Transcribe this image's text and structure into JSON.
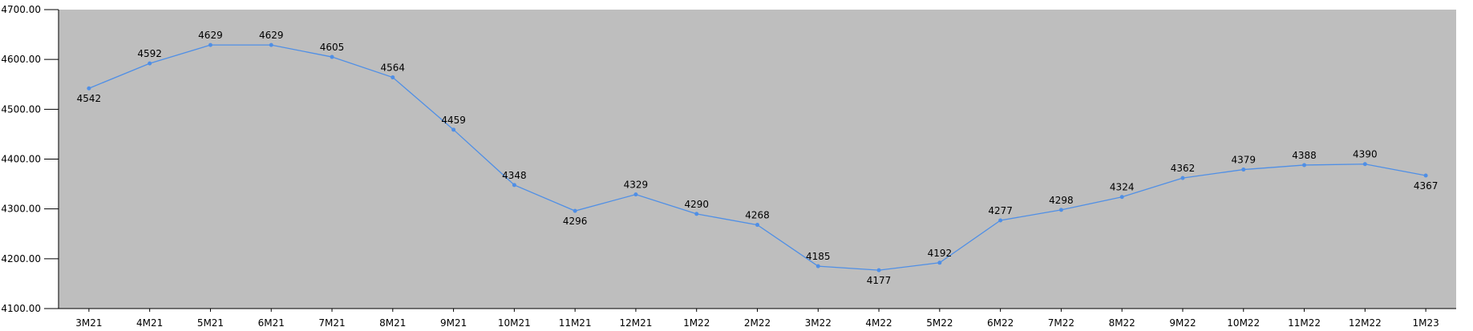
{
  "chart_data": {
    "type": "line",
    "categories": [
      "3M21",
      "4M21",
      "5M21",
      "6M21",
      "7M21",
      "8M21",
      "9M21",
      "10M21",
      "11M21",
      "12M21",
      "1M22",
      "2M22",
      "3M22",
      "4M22",
      "5M22",
      "6M22",
      "7M22",
      "8M22",
      "9M22",
      "10M22",
      "11M22",
      "12M22",
      "1M23"
    ],
    "values": [
      4542,
      4592,
      4629,
      4629,
      4605,
      4564,
      4459,
      4348,
      4296,
      4329,
      4290,
      4268,
      4185,
      4177,
      4192,
      4277,
      4298,
      4324,
      4362,
      4379,
      4388,
      4390,
      4367
    ],
    "color": "#4f8fe6",
    "ylim": [
      4100,
      4700
    ],
    "yticks": [
      {
        "value": 4100,
        "label": "4100.00"
      },
      {
        "value": 4200,
        "label": "4200.00"
      },
      {
        "value": 4300,
        "label": "4300.00"
      },
      {
        "value": 4400,
        "label": "4400.00"
      },
      {
        "value": 4500,
        "label": "4500.00"
      },
      {
        "value": 4600,
        "label": "4600.00"
      },
      {
        "value": 4700,
        "label": "4700.00"
      }
    ]
  }
}
